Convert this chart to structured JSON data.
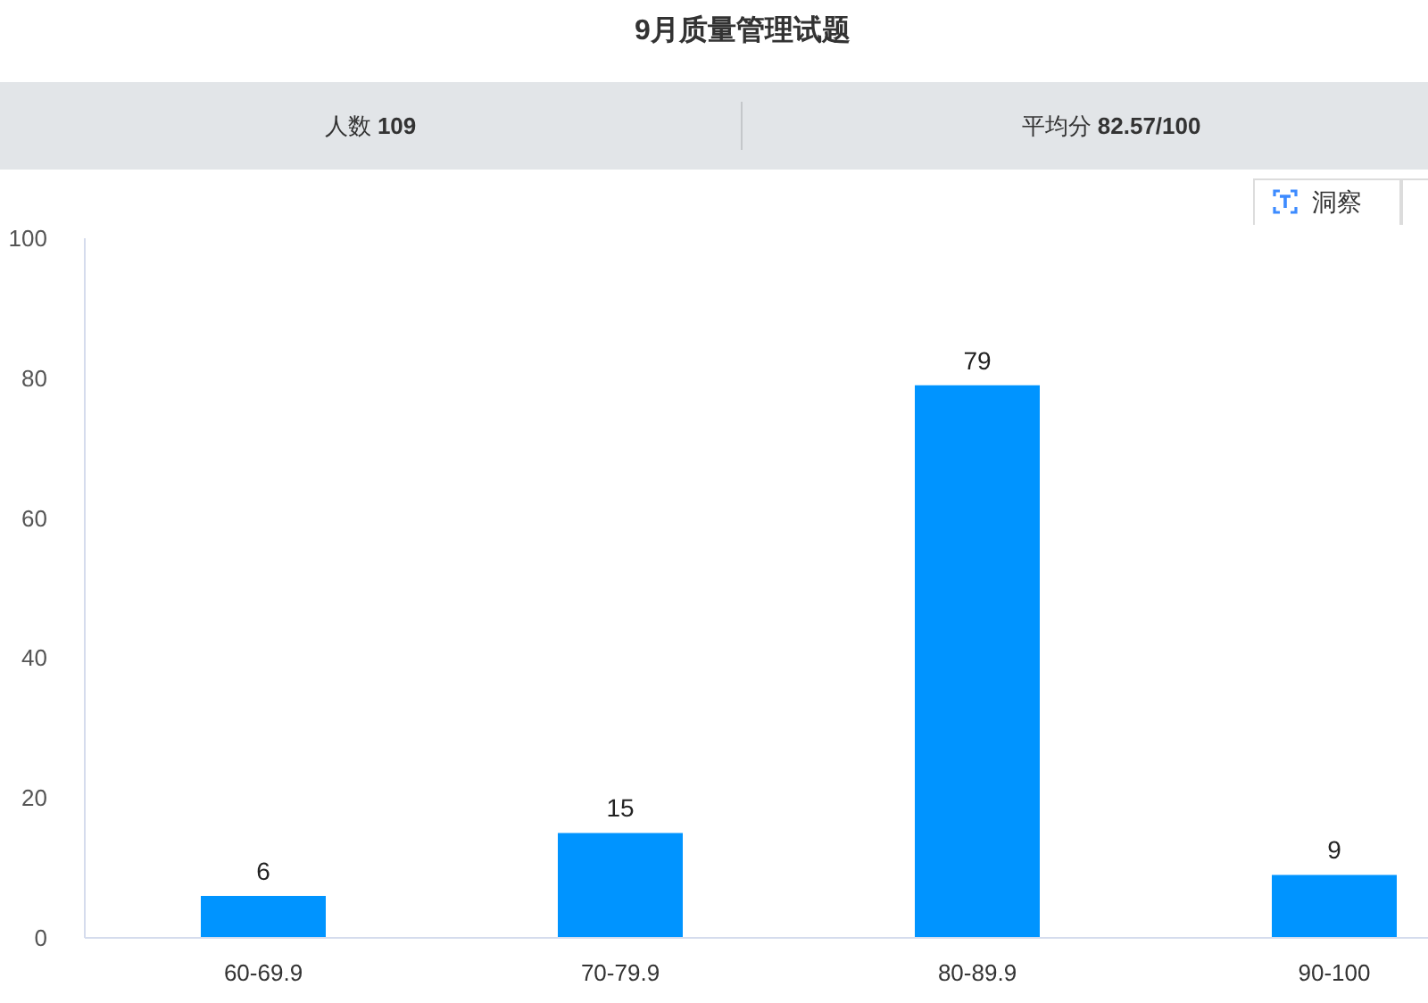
{
  "chart_data": {
    "type": "bar",
    "title": "9月质量管理试题",
    "annotations": [
      "人数 109",
      "平均分 82.57/100",
      "洞察"
    ],
    "categories": [
      "60-69.9",
      "70-79.9",
      "80-89.9",
      "90-100"
    ],
    "values": [
      6,
      15,
      79,
      9
    ],
    "color": "#0094ff",
    "ylim": [
      0,
      100
    ],
    "yticks": [
      0,
      20,
      40,
      60,
      80,
      100
    ],
    "data_labels": true
  }
}
